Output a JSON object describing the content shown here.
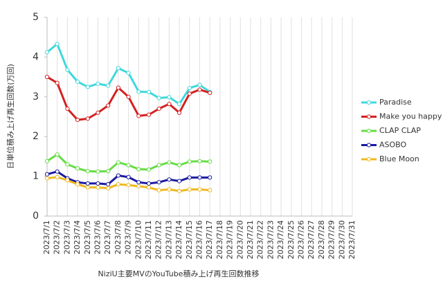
{
  "chart_data": {
    "type": "line",
    "xlabel": "NiziU主要MVのYouTube積み上げ再生回数推移",
    "ylabel": "日単位積み上げ再生回数(万回)",
    "categories": [
      "2023/7/1",
      "2023/7/2",
      "2023/7/3",
      "2023/7/4",
      "2023/7/5",
      "2023/7/6",
      "2023/7/7",
      "2023/7/8",
      "2023/7/9",
      "2023/7/10",
      "2023/7/11",
      "2023/7/12",
      "2023/7/13",
      "2023/7/14",
      "2023/7/15",
      "2023/7/16",
      "2023/7/17",
      "2023/7/18",
      "2023/7/19",
      "2023/7/20",
      "2023/7/21",
      "2023/7/22",
      "2023/7/23",
      "2023/7/24",
      "2023/7/25",
      "2023/7/26",
      "2023/7/27",
      "2023/7/28",
      "2023/7/29",
      "2023/7/30",
      "2023/7/31"
    ],
    "series": [
      {
        "name": "Paradise",
        "color": "#3fd8dc",
        "values": [
          4.12,
          4.33,
          3.68,
          3.38,
          3.25,
          3.33,
          3.28,
          3.72,
          3.6,
          3.13,
          3.12,
          2.97,
          2.99,
          2.82,
          3.22,
          3.3,
          3.12,
          null,
          null,
          null,
          null,
          null,
          null,
          null,
          null,
          null,
          null,
          null,
          null,
          null,
          null
        ]
      },
      {
        "name": "Make you happy",
        "color": "#d42020",
        "values": [
          3.5,
          3.35,
          2.7,
          2.42,
          2.45,
          2.6,
          2.78,
          3.23,
          3.0,
          2.52,
          2.55,
          2.7,
          2.82,
          2.6,
          3.08,
          3.18,
          3.1,
          null,
          null,
          null,
          null,
          null,
          null,
          null,
          null,
          null,
          null,
          null,
          null,
          null,
          null
        ]
      },
      {
        "name": "CLAP CLAP",
        "color": "#66dd44",
        "values": [
          1.38,
          1.55,
          1.3,
          1.2,
          1.13,
          1.12,
          1.13,
          1.35,
          1.28,
          1.18,
          1.17,
          1.28,
          1.35,
          1.28,
          1.37,
          1.38,
          1.37,
          null,
          null,
          null,
          null,
          null,
          null,
          null,
          null,
          null,
          null,
          null,
          null,
          null,
          null
        ]
      },
      {
        "name": "ASOBO",
        "color": "#1a1aa0",
        "values": [
          1.05,
          1.12,
          0.95,
          0.85,
          0.82,
          0.82,
          0.8,
          1.02,
          0.98,
          0.85,
          0.82,
          0.85,
          0.92,
          0.88,
          0.97,
          0.97,
          0.97,
          null,
          null,
          null,
          null,
          null,
          null,
          null,
          null,
          null,
          null,
          null,
          null,
          null,
          null
        ]
      },
      {
        "name": "Blue Moon",
        "color": "#f0b820",
        "values": [
          0.95,
          0.98,
          0.9,
          0.8,
          0.72,
          0.72,
          0.7,
          0.8,
          0.78,
          0.75,
          0.72,
          0.65,
          0.67,
          0.63,
          0.67,
          0.67,
          0.65,
          null,
          null,
          null,
          null,
          null,
          null,
          null,
          null,
          null,
          null,
          null,
          null,
          null,
          null
        ]
      }
    ],
    "ylim": [
      0,
      5
    ],
    "yticks": [
      0,
      1,
      2,
      3,
      4,
      5
    ],
    "grid": "x",
    "legend": "right"
  }
}
